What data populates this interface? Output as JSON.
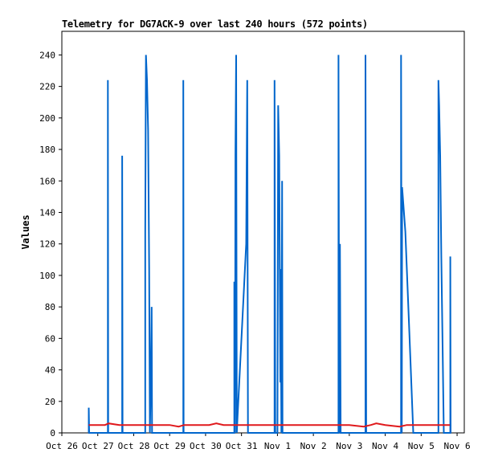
{
  "chart_data": {
    "type": "line",
    "title": "Telemetry for DG7ACK-9 over last 240 hours (572 points)",
    "xlabel": "",
    "ylabel": "Values",
    "ylim": [
      0,
      255
    ],
    "yticks": [
      0,
      20,
      40,
      60,
      80,
      100,
      120,
      140,
      160,
      180,
      200,
      220,
      240
    ],
    "xlim_days": [
      0,
      11.2
    ],
    "xtick_labels": [
      "Oct 26",
      "Oct 27",
      "Oct 28",
      "Oct 29",
      "Oct 30",
      "Oct 31",
      "Nov 1",
      "Nov 2",
      "Nov 3",
      "Nov 4",
      "Nov 5",
      "Nov 6"
    ],
    "grid": false,
    "series": [
      {
        "color": "#0066cc",
        "points": [
          [
            0.75,
            0
          ],
          [
            0.75,
            16
          ],
          [
            0.76,
            0
          ],
          [
            1.28,
            0
          ],
          [
            1.28,
            224
          ],
          [
            1.29,
            0
          ],
          [
            1.68,
            0
          ],
          [
            1.68,
            176
          ],
          [
            1.69,
            0
          ],
          [
            2.32,
            0
          ],
          [
            2.32,
            127
          ],
          [
            2.34,
            240
          ],
          [
            2.37,
            224
          ],
          [
            2.4,
            192
          ],
          [
            2.43,
            104
          ],
          [
            2.45,
            0
          ],
          [
            2.48,
            40
          ],
          [
            2.5,
            80
          ],
          [
            2.51,
            0
          ],
          [
            3.38,
            0
          ],
          [
            3.38,
            224
          ],
          [
            3.39,
            0
          ],
          [
            4.8,
            0
          ],
          [
            4.8,
            96
          ],
          [
            4.82,
            0
          ],
          [
            4.83,
            176
          ],
          [
            4.85,
            240
          ],
          [
            4.87,
            0
          ],
          [
            4.89,
            10
          ],
          [
            5.13,
            120
          ],
          [
            5.16,
            224
          ],
          [
            5.18,
            0
          ],
          [
            5.92,
            0
          ],
          [
            5.92,
            224
          ],
          [
            5.94,
            0
          ],
          [
            6.0,
            0
          ],
          [
            6.02,
            208
          ],
          [
            6.05,
            176
          ],
          [
            6.08,
            32
          ],
          [
            6.09,
            104
          ],
          [
            6.11,
            0
          ],
          [
            6.13,
            160
          ],
          [
            6.14,
            0
          ],
          [
            7.7,
            0
          ],
          [
            7.7,
            240
          ],
          [
            7.72,
            0
          ],
          [
            7.74,
            120
          ],
          [
            7.76,
            0
          ],
          [
            8.45,
            0
          ],
          [
            8.45,
            240
          ],
          [
            8.47,
            0
          ],
          [
            9.44,
            0
          ],
          [
            9.44,
            240
          ],
          [
            9.46,
            0
          ],
          [
            9.47,
            156
          ],
          [
            9.56,
            128
          ],
          [
            9.67,
            64
          ],
          [
            9.78,
            0
          ],
          [
            10.48,
            0
          ],
          [
            10.48,
            224
          ],
          [
            10.5,
            208
          ],
          [
            10.53,
            176
          ],
          [
            10.56,
            112
          ],
          [
            10.6,
            48
          ],
          [
            10.63,
            0
          ],
          [
            10.81,
            0
          ],
          [
            10.81,
            112
          ],
          [
            10.82,
            0
          ]
        ]
      },
      {
        "color": "#e0191c",
        "points": [
          [
            0.75,
            5
          ],
          [
            1.2,
            5
          ],
          [
            1.3,
            6
          ],
          [
            1.6,
            5
          ],
          [
            3.0,
            5
          ],
          [
            3.25,
            4
          ],
          [
            3.4,
            5
          ],
          [
            4.1,
            5
          ],
          [
            4.3,
            6
          ],
          [
            4.5,
            5
          ],
          [
            5.5,
            5
          ],
          [
            7.5,
            5
          ],
          [
            8.0,
            5
          ],
          [
            8.4,
            4
          ],
          [
            8.6,
            5
          ],
          [
            8.75,
            6
          ],
          [
            9.0,
            5
          ],
          [
            9.4,
            4
          ],
          [
            9.6,
            5
          ],
          [
            10.8,
            5
          ]
        ]
      }
    ]
  }
}
